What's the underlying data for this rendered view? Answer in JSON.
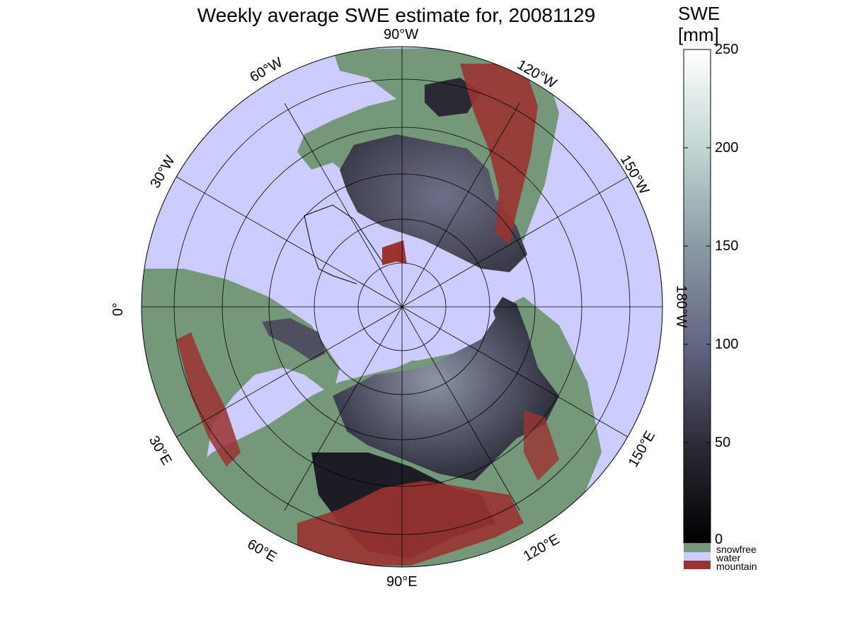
{
  "title": "Weekly average SWE estimate for, 20081129",
  "colorbar": {
    "title_line1": "SWE",
    "title_line2": "[mm]",
    "ticks": [
      "250",
      "200",
      "150",
      "100",
      "50",
      "0"
    ],
    "range": [
      0,
      250
    ]
  },
  "legend": {
    "snowfree": "snowfree",
    "water": "water",
    "mountain": "mountain"
  },
  "colors": {
    "snowfree": "#76987a",
    "water": "#ccccff",
    "mountain": "#9b3331",
    "swe_low": "#000000",
    "swe_mid": "#7c7c9a",
    "swe_high": "#ffffff"
  },
  "map": {
    "projection": "north polar stereographic",
    "longitude_labels": {
      "lon_90w": "90°W",
      "lon_60w": "60°W",
      "lon_120w": "120°W",
      "lon_30w": "30°W",
      "lon_150w": "150°W",
      "lon_0": "0°",
      "lon_180w": "180°W",
      "lon_30e": "30°E",
      "lon_150e": "150°E",
      "lon_60e": "60°E",
      "lon_120e": "120°E",
      "lon_90e": "90°E"
    }
  }
}
